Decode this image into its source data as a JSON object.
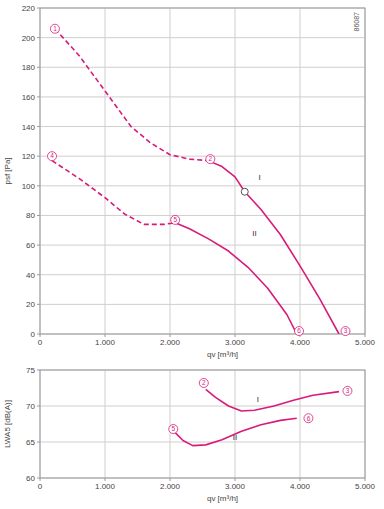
{
  "chart_data": [
    {
      "type": "line",
      "subtitle": "86087",
      "xlabel": "qv [m³/h]",
      "ylabel": "psf [Pa]",
      "xlim": [
        0,
        5000
      ],
      "xticks": [
        0,
        {
          "value": 1000,
          "label": "1.000"
        },
        {
          "value": 2000,
          "label": "2.000"
        },
        {
          "value": 3000,
          "label": "3.000"
        },
        {
          "value": 4000,
          "label": "4.000"
        },
        {
          "value": 5000,
          "label": "5.000"
        }
      ],
      "ylim": [
        0,
        220
      ],
      "yticks": [
        0,
        20,
        40,
        60,
        80,
        100,
        120,
        140,
        160,
        180,
        200,
        220
      ],
      "grid": true,
      "tick_labels": true,
      "series": [
        {
          "line_style": "dashed",
          "color": "#d81b7a",
          "x": [
            230,
            600,
            1000,
            1400,
            1700,
            2000,
            2300,
            2585
          ],
          "values": [
            206,
            188,
            164,
            140,
            129,
            121,
            118,
            117
          ]
        },
        {
          "line_style": "solid",
          "color": "#d81b7a",
          "x": [
            2585,
            2800,
            3000,
            3150,
            3400,
            3700,
            4000,
            4300,
            4600
          ],
          "values": [
            117,
            113,
            106,
            96,
            84,
            67,
            46,
            24,
            0
          ]
        },
        {
          "line_style": "dashed",
          "color": "#d81b7a",
          "x": [
            185,
            600,
            1000,
            1300,
            1600,
            1900,
            2080
          ],
          "values": [
            117,
            105,
            92,
            81,
            74,
            74,
            75
          ]
        },
        {
          "line_style": "solid",
          "color": "#d81b7a",
          "x": [
            2080,
            2300,
            2600,
            2900,
            3200,
            3500,
            3800,
            3950
          ],
          "values": [
            75,
            71,
            64,
            56,
            45,
            31,
            13,
            0
          ]
        },
        {
          "type": "scatter",
          "marker": "circle",
          "color": "#555555",
          "x": [
            3150
          ],
          "values": [
            96
          ]
        }
      ],
      "annotations": [
        {
          "text": "1",
          "x": 230,
          "y": 206
        },
        {
          "text": "2",
          "x": 2620,
          "y": 118
        },
        {
          "text": "3",
          "x": 4700,
          "y": 2
        },
        {
          "text": "4",
          "x": 185,
          "y": 120
        },
        {
          "text": "5",
          "x": 2080,
          "y": 77
        },
        {
          "text": "6",
          "x": 3985,
          "y": 2
        }
      ],
      "labels": [
        {
          "text": "I",
          "x": 3380,
          "y": 104
        },
        {
          "text": "II",
          "x": 3300,
          "y": 66
        }
      ]
    },
    {
      "type": "line",
      "xlabel": "qv [m³/h]",
      "ylabel": "LWA5 [dB(A)]",
      "xlim": [
        0,
        5000
      ],
      "xticks": [
        0,
        {
          "value": 1000,
          "label": "1.000"
        },
        {
          "value": 2000,
          "label": "2.000"
        },
        {
          "value": 3000,
          "label": "3.000"
        },
        {
          "value": 4000,
          "label": "4.000"
        },
        {
          "value": 5000,
          "label": "5.000"
        }
      ],
      "ylim": [
        60,
        75
      ],
      "yticks": [
        60,
        65,
        70,
        75
      ],
      "grid": true,
      "tick_labels": true,
      "series": [
        {
          "line_style": "solid",
          "color": "#d81b7a",
          "x": [
            2550,
            2700,
            2900,
            3100,
            3300,
            3600,
            3900,
            4200,
            4600
          ],
          "values": [
            72.3,
            71.2,
            70,
            69.3,
            69.4,
            70,
            70.8,
            71.5,
            72
          ]
        },
        {
          "line_style": "solid",
          "color": "#d81b7a",
          "x": [
            2080,
            2200,
            2350,
            2550,
            2800,
            3100,
            3400,
            3700,
            3950
          ],
          "values": [
            66.3,
            65.2,
            64.5,
            64.6,
            65.3,
            66.5,
            67.4,
            68,
            68.3
          ]
        }
      ],
      "annotations": [
        {
          "text": "2",
          "x": 2520,
          "y": 73.2
        },
        {
          "text": "3",
          "x": 4730,
          "y": 72.1
        },
        {
          "text": "5",
          "x": 2050,
          "y": 66.8
        },
        {
          "text": "6",
          "x": 4130,
          "y": 68.3
        }
      ],
      "labels": [
        {
          "text": "I",
          "x": 3350,
          "y": 70.5
        },
        {
          "text": "II",
          "x": 3000,
          "y": 65.3
        }
      ]
    }
  ]
}
